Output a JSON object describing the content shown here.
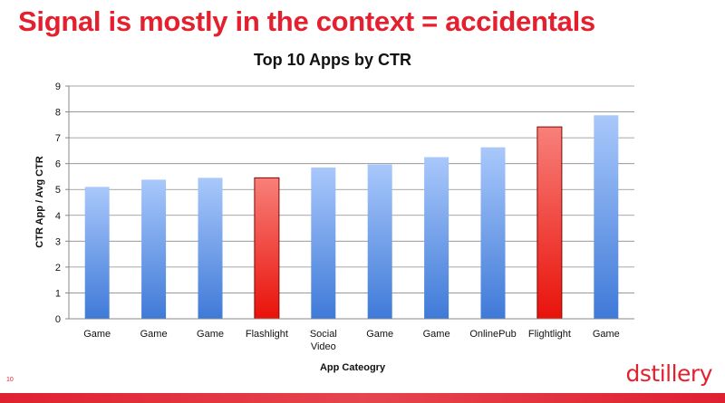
{
  "slide": {
    "title": "Signal is mostly in the context = accidentals",
    "page_number": "10",
    "logo_text": "dstillery",
    "accent_color": "#e5202e"
  },
  "chart_data": {
    "type": "bar",
    "title": "Top 10 Apps by CTR",
    "xlabel": "App Cateogry",
    "ylabel": "CTR App / Avg CTR",
    "ylim": [
      0,
      9
    ],
    "yticks": [
      0,
      1,
      2,
      3,
      4,
      5,
      6,
      7,
      8,
      9
    ],
    "grid": true,
    "legend": "none",
    "categories": [
      "Game",
      "Game",
      "Game",
      "Flashlight",
      "Social Video",
      "Game",
      "Game",
      "OnlinePub",
      "Flightlight",
      "Game"
    ],
    "values": [
      5.1,
      5.38,
      5.45,
      5.45,
      5.85,
      5.97,
      6.25,
      6.63,
      7.42,
      7.87
    ],
    "highlighted": [
      false,
      false,
      false,
      true,
      false,
      false,
      false,
      false,
      true,
      false
    ],
    "colors": {
      "default_bar": "#5b8fe0",
      "highlight_bar": "#f0231a"
    }
  }
}
